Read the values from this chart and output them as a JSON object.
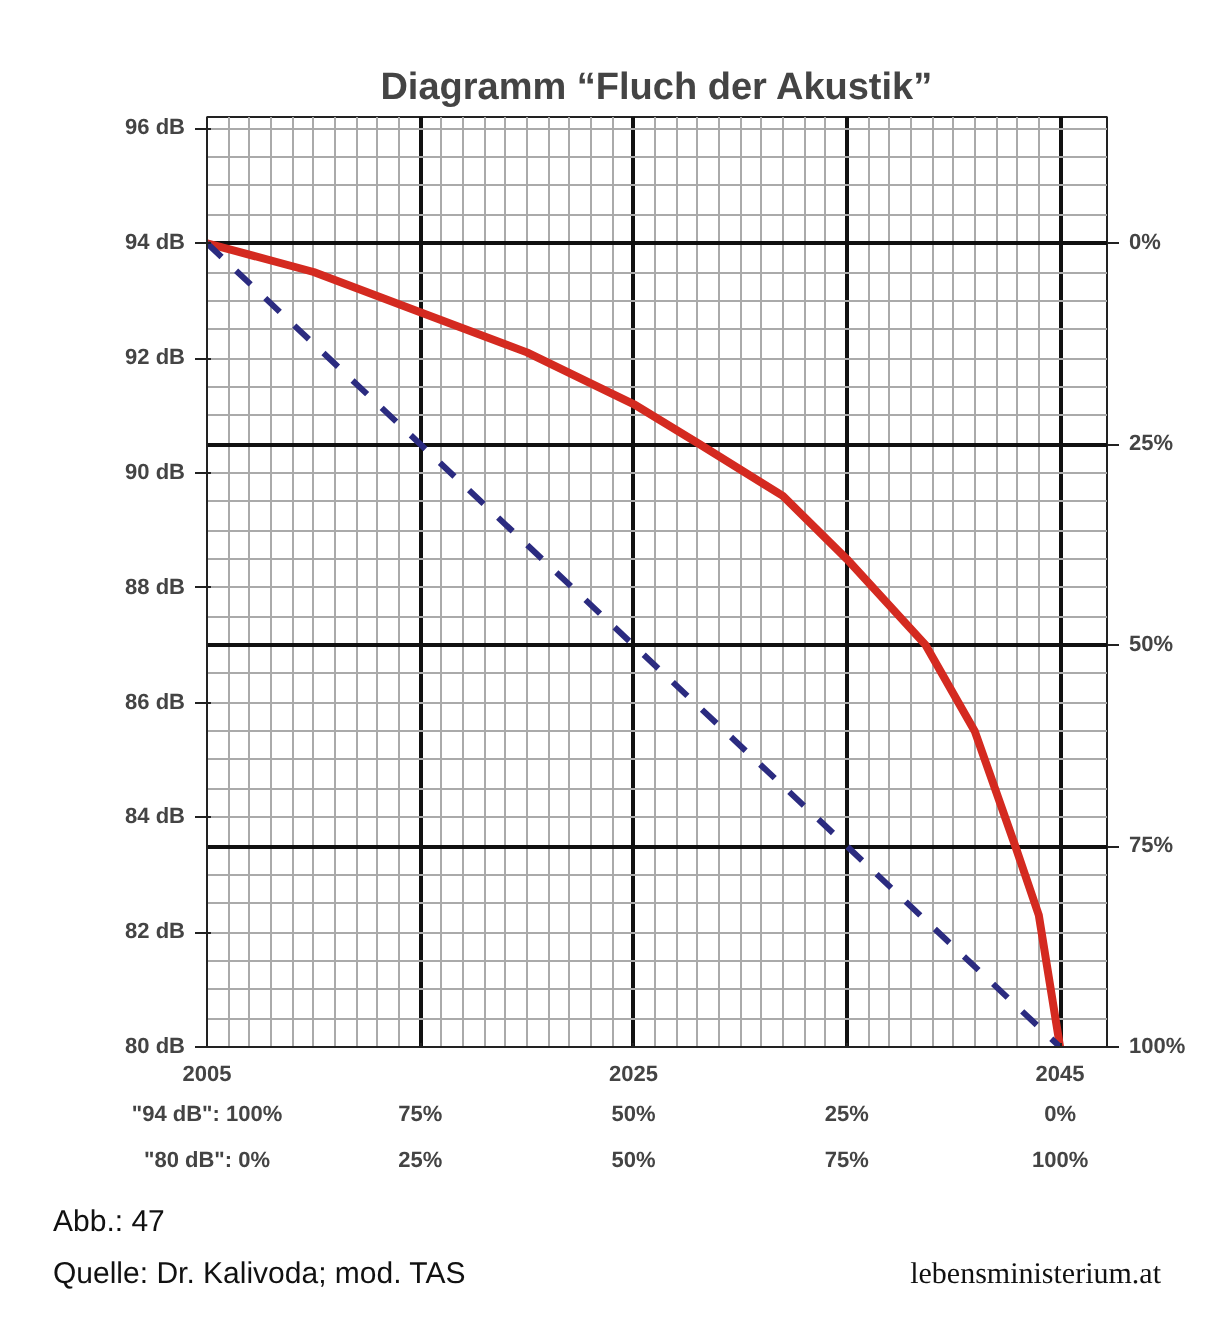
{
  "chart_data": {
    "type": "line",
    "title": "Diagramm “Fluch der Akustik”",
    "xlim": [
      2005,
      2047.2
    ],
    "ylim": [
      80,
      96.2
    ],
    "y2lim": [
      100,
      -15.7
    ],
    "xticks": [
      2005,
      {
        "value": 2015,
        "label": null
      },
      2025,
      {
        "value": 2035,
        "label": null
      },
      2045
    ],
    "yticks": [
      {
        "value": 80,
        "label": "80 dB"
      },
      {
        "value": 82,
        "label": "82 dB"
      },
      {
        "value": 84,
        "label": "84 dB"
      },
      {
        "value": 86,
        "label": "86 dB"
      },
      {
        "value": 88,
        "label": "88 dB"
      },
      {
        "value": 90,
        "label": "90 dB"
      },
      {
        "value": 92,
        "label": "92 dB"
      },
      {
        "value": 94,
        "label": "94 dB"
      },
      {
        "value": 96,
        "label": "96 dB"
      }
    ],
    "y2ticks": [
      {
        "value": 0,
        "label": "0%"
      },
      {
        "value": 25,
        "label": "25%"
      },
      {
        "value": 50,
        "label": "50%"
      },
      {
        "value": 75,
        "label": "75%"
      },
      {
        "value": 100,
        "label": "100%"
      }
    ],
    "grid": true,
    "series": [
      {
        "color": "#d42a20",
        "line_style": "solid",
        "x": [
          2005,
          2010,
          2015,
          2020,
          2025,
          2028.1,
          2032,
          2035,
          2038.7,
          2041,
          2042.9,
          2044,
          2045
        ],
        "values": [
          94,
          93.5,
          92.8,
          92.1,
          91.2,
          90.5,
          89.6,
          88.5,
          87,
          85.5,
          83.5,
          82.3,
          80
        ]
      },
      {
        "color": "#2b2b80",
        "line_style": "dashed",
        "x": [
          2005,
          2045
        ],
        "values": [
          94,
          80
        ]
      }
    ],
    "annotations": [
      "\"94 dB\": 100%",
      "\"80 dB\": 0%",
      "75%",
      "25%",
      "50%",
      "50%",
      "25%",
      "75%",
      "0%",
      "100%",
      "Abb.: 47",
      "Quelle: Dr. Kalivoda; mod. TAS",
      "lebensministerium.at"
    ]
  }
}
